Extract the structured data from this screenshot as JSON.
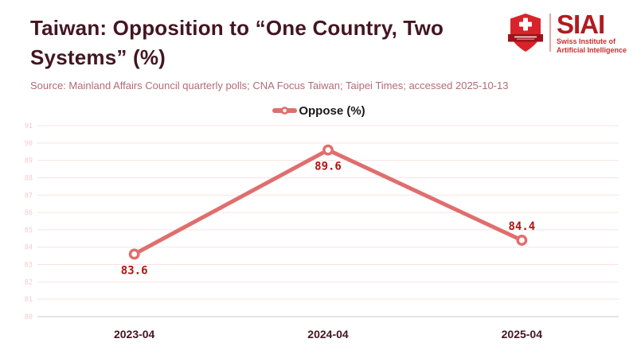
{
  "header": {
    "title": "Taiwan: Opposition to “One Country, Two Systems” (%)",
    "source": "Source: Mainland Affairs Council quarterly polls; CNA Focus Taiwan; Taipei Times; accessed 2025-10-13"
  },
  "logo": {
    "acronym": "SIAI",
    "subtitle_line1": "Swiss Institute of",
    "subtitle_line2": "Artificial Intelligence"
  },
  "legend": {
    "label": "Oppose (%)"
  },
  "colors": {
    "title": "#431621",
    "source_text": "#b26b76",
    "line": "#e06e6e",
    "marker_fill": "#ffffff",
    "data_label": "#b51212",
    "gridline": "#f9e2e2",
    "axis_line": "#c9c9c9",
    "y_tick_label": "#f4cccc",
    "x_tick_label": "#431621",
    "legend_text": "#191919",
    "brand_red": "#b01b20",
    "shield_red": "#d8232a",
    "banner_red": "#9e1218"
  },
  "chart_data": {
    "type": "line",
    "categories": [
      "2023-04",
      "2024-04",
      "2025-04"
    ],
    "series": [
      {
        "name": "Oppose (%)",
        "values": [
          83.6,
          89.6,
          84.4
        ]
      }
    ],
    "data_labels": [
      "83.6",
      "89.6",
      "84.4"
    ],
    "label_positions": [
      "below",
      "below",
      "above"
    ],
    "title": "Taiwan: Opposition to “One Country, Two Systems” (%)",
    "xlabel": "",
    "ylabel": "",
    "ylim": [
      80,
      91
    ],
    "ytick_step": 1,
    "grid": true,
    "legend_position": "top-center"
  }
}
